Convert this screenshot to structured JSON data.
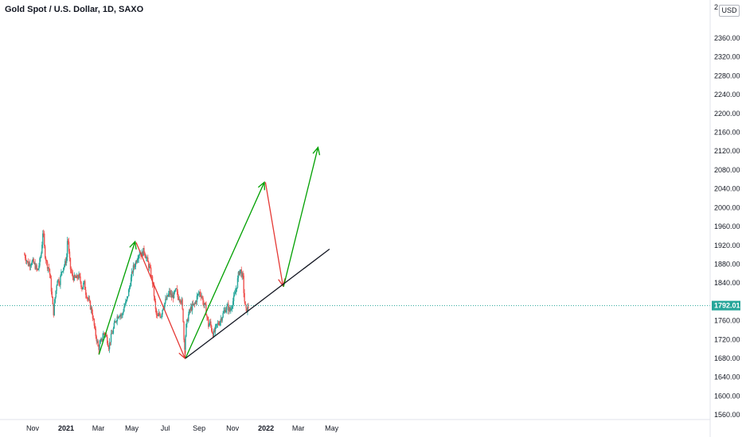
{
  "header": {
    "symbol_title": "Gold Spot / U.S. Dollar, 1D, SAXO"
  },
  "currency_button": "USD",
  "chart_data": {
    "type": "candlestick",
    "title": "Gold Spot / U.S. Dollar, 1D, SAXO",
    "y_axis": {
      "range": [
        1528,
        2400
      ],
      "tick_labels": [
        "2360.00",
        "2320.00",
        "2280.00",
        "2240.00",
        "2200.00",
        "2160.00",
        "2120.00",
        "2080.00",
        "2040.00",
        "2000.00",
        "1960.00",
        "1920.00",
        "1880.00",
        "1840.00",
        "1760.00",
        "1720.00",
        "1680.00",
        "1640.00",
        "1600.00",
        "1560.00"
      ],
      "tick_values": [
        2360,
        2320,
        2280,
        2240,
        2200,
        2160,
        2120,
        2080,
        2040,
        2000,
        1960,
        1920,
        1880,
        1840,
        1760,
        1720,
        1680,
        1640,
        1600,
        1560
      ],
      "top_partial_label": "2",
      "currency": "USD"
    },
    "x_axis": {
      "tick_labels": [
        "Nov",
        "2021",
        "Mar",
        "May",
        "Jul",
        "Sep",
        "Nov",
        "2022",
        "Mar",
        "May"
      ],
      "tick_emphasis": [
        false,
        true,
        false,
        false,
        false,
        false,
        false,
        true,
        false,
        false
      ],
      "tick_days": [
        0,
        61,
        120,
        181,
        242,
        304,
        365,
        426,
        485,
        546
      ],
      "note": "tick_days = days since 2020-11-01"
    },
    "current_price": {
      "value": 1792.01,
      "label": "1792.01",
      "color": "#26a69a"
    },
    "price_path": [
      [
        -15,
        1900
      ],
      [
        -8,
        1880
      ],
      [
        0,
        1885
      ],
      [
        5,
        1875
      ],
      [
        9,
        1865
      ],
      [
        12,
        1880
      ],
      [
        16,
        1905
      ],
      [
        19,
        1955
      ],
      [
        22,
        1905
      ],
      [
        26,
        1880
      ],
      [
        30,
        1870
      ],
      [
        33,
        1840
      ],
      [
        36,
        1800
      ],
      [
        38,
        1775
      ],
      [
        41,
        1810
      ],
      [
        45,
        1850
      ],
      [
        49,
        1840
      ],
      [
        52,
        1860
      ],
      [
        56,
        1875
      ],
      [
        59,
        1880
      ],
      [
        62,
        1895
      ],
      [
        64,
        1945
      ],
      [
        66,
        1905
      ],
      [
        69,
        1870
      ],
      [
        72,
        1855
      ],
      [
        76,
        1850
      ],
      [
        80,
        1850
      ],
      [
        84,
        1855
      ],
      [
        87,
        1845
      ],
      [
        90,
        1830
      ],
      [
        94,
        1840
      ],
      [
        97,
        1820
      ],
      [
        100,
        1810
      ],
      [
        104,
        1795
      ],
      [
        108,
        1780
      ],
      [
        111,
        1760
      ],
      [
        114,
        1735
      ],
      [
        117,
        1720
      ],
      [
        120,
        1700
      ],
      [
        123,
        1710
      ],
      [
        126,
        1720
      ],
      [
        130,
        1735
      ],
      [
        133,
        1730
      ],
      [
        136,
        1720
      ],
      [
        139,
        1705
      ],
      [
        143,
        1725
      ],
      [
        147,
        1740
      ],
      [
        151,
        1760
      ],
      [
        155,
        1770
      ],
      [
        159,
        1775
      ],
      [
        163,
        1770
      ],
      [
        167,
        1790
      ],
      [
        171,
        1800
      ],
      [
        175,
        1820
      ],
      [
        179,
        1845
      ],
      [
        183,
        1870
      ],
      [
        187,
        1880
      ],
      [
        191,
        1895
      ],
      [
        195,
        1905
      ],
      [
        199,
        1900
      ],
      [
        203,
        1910
      ],
      [
        207,
        1895
      ],
      [
        211,
        1880
      ],
      [
        215,
        1865
      ],
      [
        219,
        1840
      ],
      [
        222,
        1810
      ],
      [
        225,
        1775
      ],
      [
        228,
        1765
      ],
      [
        231,
        1775
      ],
      [
        234,
        1770
      ],
      [
        238,
        1790
      ],
      [
        242,
        1800
      ],
      [
        246,
        1810
      ],
      [
        250,
        1820
      ],
      [
        254,
        1810
      ],
      [
        258,
        1815
      ],
      [
        262,
        1825
      ],
      [
        265,
        1810
      ],
      [
        268,
        1810
      ],
      [
        272,
        1800
      ],
      [
        275,
        1760
      ],
      [
        277,
        1695
      ],
      [
        280,
        1745
      ],
      [
        284,
        1770
      ],
      [
        288,
        1785
      ],
      [
        292,
        1790
      ],
      [
        296,
        1795
      ],
      [
        300,
        1810
      ],
      [
        304,
        1820
      ],
      [
        308,
        1815
      ],
      [
        312,
        1795
      ],
      [
        315,
        1790
      ],
      [
        318,
        1770
      ],
      [
        321,
        1750
      ],
      [
        324,
        1755
      ],
      [
        327,
        1740
      ],
      [
        330,
        1730
      ],
      [
        333,
        1740
      ],
      [
        336,
        1750
      ],
      [
        340,
        1755
      ],
      [
        344,
        1765
      ],
      [
        348,
        1775
      ],
      [
        352,
        1785
      ],
      [
        356,
        1790
      ],
      [
        360,
        1780
      ],
      [
        364,
        1795
      ],
      [
        368,
        1810
      ],
      [
        372,
        1830
      ],
      [
        376,
        1860
      ],
      [
        379,
        1870
      ],
      [
        381,
        1860
      ],
      [
        384,
        1850
      ],
      [
        386,
        1810
      ],
      [
        389,
        1780
      ],
      [
        392,
        1785
      ],
      [
        395,
        1792
      ]
    ],
    "annotations": [
      {
        "kind": "arrow",
        "color": "#00a000",
        "from": [
          121,
          1688
        ],
        "to": [
          187,
          1928
        ]
      },
      {
        "kind": "arrow",
        "color": "#e53935",
        "from": [
          189,
          1926
        ],
        "to": [
          278,
          1680
        ]
      },
      {
        "kind": "arrow",
        "color": "#00a000",
        "from": [
          279,
          1680
        ],
        "to": [
          423,
          2054
        ]
      },
      {
        "kind": "arrow",
        "color": "#e53935",
        "from": [
          425,
          2054
        ],
        "to": [
          457,
          1834
        ]
      },
      {
        "kind": "arrow",
        "color": "#00a000",
        "from": [
          458,
          1832
        ],
        "to": [
          521,
          2128
        ]
      },
      {
        "kind": "trendline",
        "color": "#131722",
        "from": [
          279,
          1680
        ],
        "to": [
          542,
          1912
        ]
      }
    ],
    "colors": {
      "up": "#26a69a",
      "down": "#ef5350",
      "grid": "none"
    }
  }
}
